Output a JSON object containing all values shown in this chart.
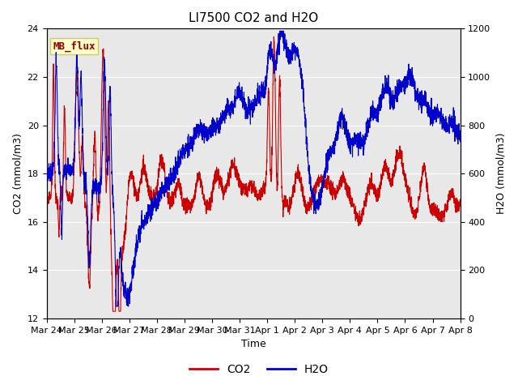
{
  "title": "LI7500 CO2 and H2O",
  "xlabel": "Time",
  "ylabel_left": "CO2 (mmol/m3)",
  "ylabel_right": "H2O (mmol/m3)",
  "ylim_left": [
    12,
    24
  ],
  "ylim_right": [
    0,
    1200
  ],
  "yticks_left": [
    12,
    14,
    16,
    18,
    20,
    22,
    24
  ],
  "yticks_right": [
    0,
    200,
    400,
    600,
    800,
    1000,
    1200
  ],
  "x_tick_labels": [
    "Mar 24",
    "Mar 25",
    "Mar 26",
    "Mar 27",
    "Mar 28",
    "Mar 29",
    "Mar 30",
    "Mar 31",
    "Apr 1",
    "Apr 2",
    "Apr 3",
    "Apr 4",
    "Apr 5",
    "Apr 6",
    "Apr 7",
    "Apr 8"
  ],
  "co2_color": "#cc0000",
  "h2o_color": "#0000cc",
  "linewidth": 0.8,
  "bg_color": "#e8e8e8",
  "annotation_text": "MB_flux",
  "legend_co2": "CO2",
  "legend_h2o": "H2O",
  "grid_color": "white",
  "title_fontsize": 11,
  "label_fontsize": 9,
  "tick_fontsize": 8,
  "legend_fontsize": 10
}
